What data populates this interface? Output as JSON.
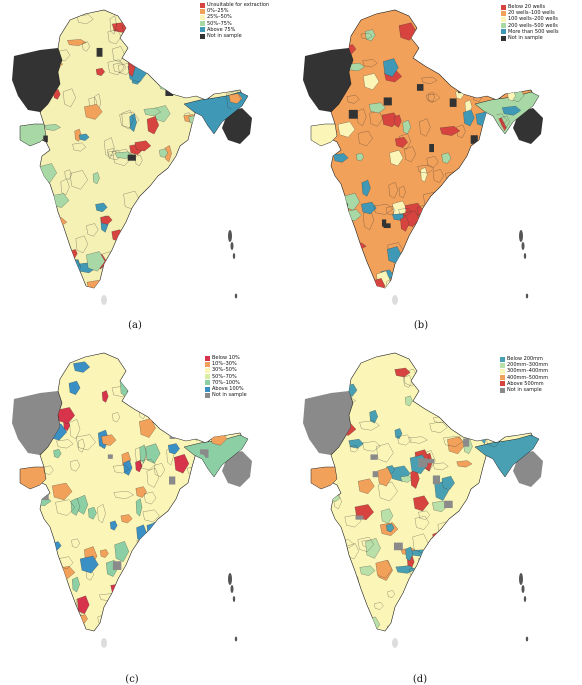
{
  "panels": [
    {
      "id": "a",
      "caption": "(a)",
      "legend": [
        {
          "label": "Unsuitable for extraction",
          "color": "#d7443f"
        },
        {
          "label": "0%–25%",
          "color": "#f2a15a"
        },
        {
          "label": "25%–50%",
          "color": "#fbf6b7"
        },
        {
          "label": "50%–75%",
          "color": "#a8d8a5"
        },
        {
          "label": "Above 75%",
          "color": "#3f99b6"
        },
        {
          "label": "Not in sample",
          "color": "#333333"
        }
      ],
      "fill": "#f5f0b4",
      "notsample": "#333333",
      "accents": [
        "#d7443f",
        "#a8d8a5",
        "#3f99b6",
        "#f2a15a"
      ]
    },
    {
      "id": "b",
      "caption": "(b)",
      "legend": [
        {
          "label": "Below 20 wells",
          "color": "#d7443f"
        },
        {
          "label": "20 wells–100 wells",
          "color": "#f2a15a"
        },
        {
          "label": "100 wells–200 wells",
          "color": "#fbf6b7"
        },
        {
          "label": "200 wells–500 wells",
          "color": "#a8d8a5"
        },
        {
          "label": "More than 500 wells",
          "color": "#3f99b6"
        },
        {
          "label": "Not in sample",
          "color": "#333333"
        }
      ],
      "fill": "#f2a15a",
      "notsample": "#333333",
      "accents": [
        "#d7443f",
        "#fbf6b7",
        "#a8d8a5",
        "#3f99b6"
      ]
    },
    {
      "id": "c",
      "caption": "(c)",
      "legend": [
        {
          "label": "Below 10%",
          "color": "#d7334a"
        },
        {
          "label": "10%–30%",
          "color": "#f2a15a"
        },
        {
          "label": "30%–50%",
          "color": "#fbf6b7"
        },
        {
          "label": "50%–70%",
          "color": "#d9eea0"
        },
        {
          "label": "70%–100%",
          "color": "#8ccfa5"
        },
        {
          "label": "Above 100%",
          "color": "#3a8fc4"
        },
        {
          "label": "Not in sample",
          "color": "#8a8a8a"
        }
      ],
      "fill": "#fbf6b7",
      "notsample": "#8a8a8a",
      "accents": [
        "#d7334a",
        "#f2a15a",
        "#8ccfa5",
        "#3a8fc4"
      ]
    },
    {
      "id": "d",
      "caption": "(d)",
      "legend": [
        {
          "label": "Below 200mm",
          "color": "#4aa0b3"
        },
        {
          "label": "200mm–300mm",
          "color": "#b9e0a8"
        },
        {
          "label": "300mm–400mm",
          "color": "#fbf6b7"
        },
        {
          "label": "400mm–500mm",
          "color": "#f2a15a"
        },
        {
          "label": "Above 500mm",
          "color": "#d7443f"
        },
        {
          "label": "Not in sample",
          "color": "#8a8a8a"
        }
      ],
      "fill": "#fbf6b7",
      "notsample": "#8a8a8a",
      "accents": [
        "#d7443f",
        "#f2a15a",
        "#4aa0b3",
        "#b9e0a8"
      ]
    }
  ]
}
